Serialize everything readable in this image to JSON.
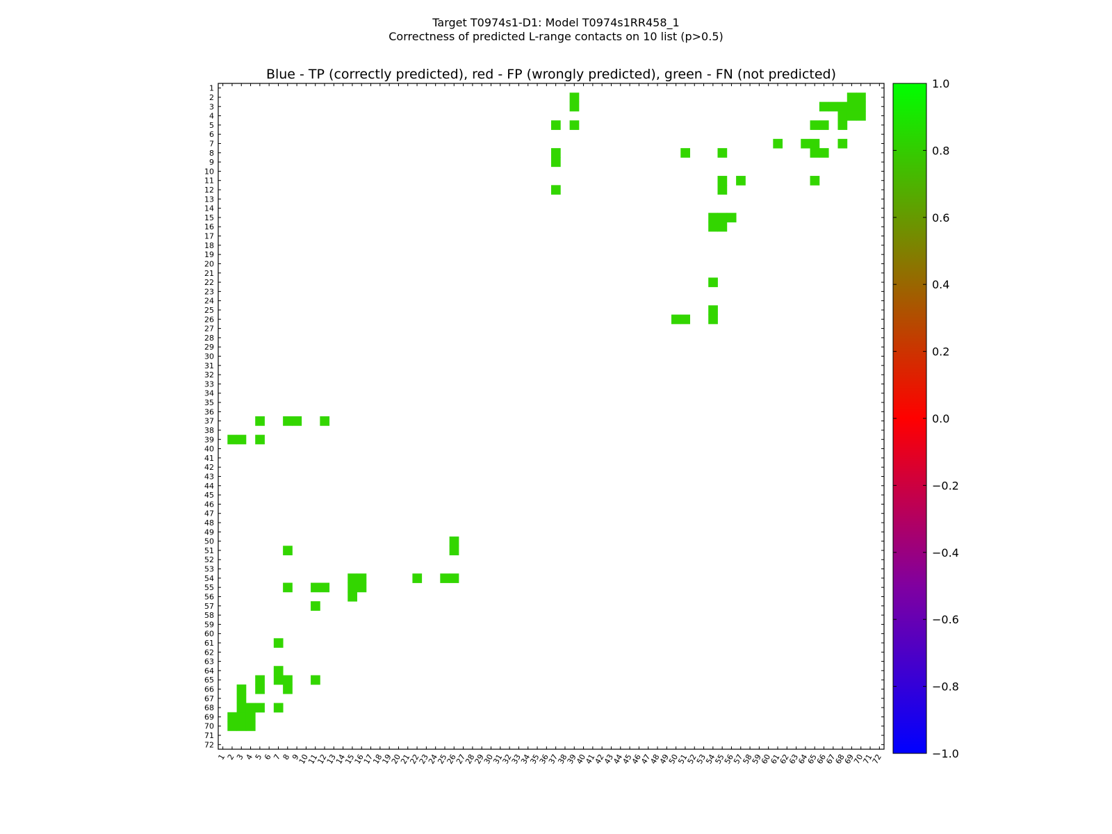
{
  "figure_title_line1": "Target T0974s1-D1: Model T0974s1RR458_1",
  "figure_title_line2": "Correctness of predicted L-range contacts on 10 list (p>0.5)",
  "chart_data": {
    "type": "heatmap",
    "title": "Blue - TP (correctly predicted), red - FP (wrongly predicted), green - FN (not predicted)",
    "xlabel": "",
    "ylabel": "",
    "n_residues": 72,
    "x_range": [
      1,
      72
    ],
    "y_range": [
      1,
      72
    ],
    "cell_value": 0.8,
    "cell_color": "#33d600",
    "colorbar": {
      "range": [
        -1.0,
        1.0
      ],
      "ticks": [
        "1.0",
        "0.8",
        "0.6",
        "0.4",
        "0.2",
        "0.0",
        "−0.2",
        "−0.4",
        "−0.6",
        "−0.8",
        "−1.0"
      ],
      "tick_values": [
        1.0,
        0.8,
        0.6,
        0.4,
        0.2,
        0.0,
        -0.2,
        -0.4,
        -0.6,
        -0.8,
        -1.0
      ],
      "colormap": [
        "#0000ff",
        "#8000a0",
        "#ff0000",
        "#808000",
        "#00ff00"
      ]
    },
    "cells": [
      [
        2,
        39
      ],
      [
        3,
        39
      ],
      [
        2,
        69
      ],
      [
        2,
        70
      ],
      [
        3,
        69
      ],
      [
        3,
        70
      ],
      [
        3,
        66
      ],
      [
        3,
        67
      ],
      [
        3,
        68
      ],
      [
        4,
        68
      ],
      [
        4,
        69
      ],
      [
        4,
        70
      ],
      [
        5,
        65
      ],
      [
        5,
        66
      ],
      [
        5,
        68
      ],
      [
        5,
        37
      ],
      [
        5,
        39
      ],
      [
        7,
        61
      ],
      [
        7,
        64
      ],
      [
        7,
        65
      ],
      [
        7,
        68
      ],
      [
        8,
        65
      ],
      [
        8,
        66
      ],
      [
        8,
        51
      ],
      [
        8,
        55
      ],
      [
        8,
        37
      ],
      [
        9,
        37
      ],
      [
        11,
        55
      ],
      [
        11,
        57
      ],
      [
        11,
        65
      ],
      [
        12,
        55
      ],
      [
        12,
        37
      ],
      [
        15,
        54
      ],
      [
        15,
        55
      ],
      [
        15,
        56
      ],
      [
        16,
        54
      ],
      [
        16,
        55
      ],
      [
        22,
        54
      ],
      [
        25,
        54
      ],
      [
        26,
        50
      ],
      [
        26,
        51
      ],
      [
        26,
        54
      ]
    ]
  }
}
